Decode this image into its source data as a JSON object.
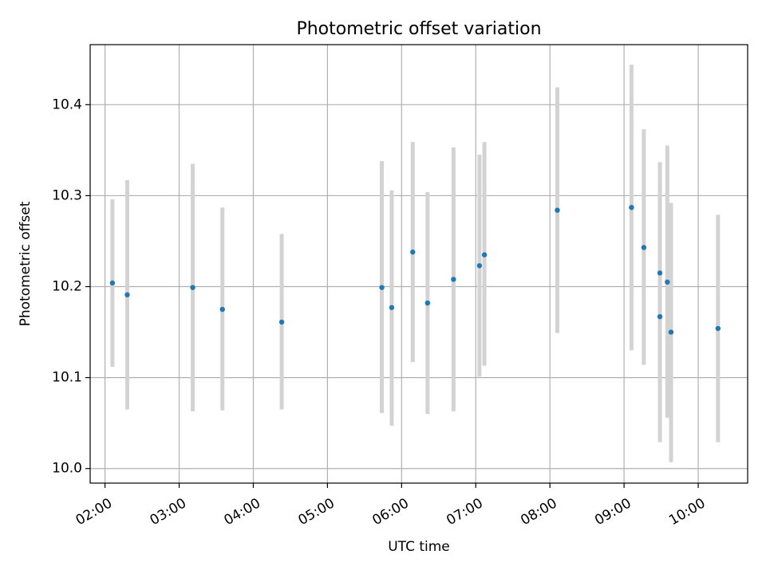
{
  "chart_data": {
    "type": "scatter",
    "title": "Photometric offset variation",
    "xlabel": "UTC time",
    "ylabel": "Photometric offset",
    "xlim": [
      "01:48",
      "10:40"
    ],
    "ylim": [
      9.984,
      10.466
    ],
    "x_ticks": [
      "02:00",
      "03:00",
      "04:00",
      "05:00",
      "06:00",
      "07:00",
      "08:00",
      "09:00",
      "10:00"
    ],
    "y_ticks": [
      10.0,
      10.1,
      10.2,
      10.3,
      10.4
    ],
    "y_tick_labels": [
      "10.0",
      "10.1",
      "10.2",
      "10.3",
      "10.4"
    ],
    "grid": true,
    "colors": {
      "point": "#1f77b4",
      "errorbar": "#d3d3d3"
    },
    "series": [
      {
        "points": [
          {
            "x": "02:06",
            "y": 10.204,
            "ylow": 10.112,
            "yhigh": 10.296
          },
          {
            "x": "02:18",
            "y": 10.191,
            "ylow": 10.065,
            "yhigh": 10.317
          },
          {
            "x": "03:11",
            "y": 10.199,
            "ylow": 10.063,
            "yhigh": 10.335
          },
          {
            "x": "03:35",
            "y": 10.175,
            "ylow": 10.064,
            "yhigh": 10.287
          },
          {
            "x": "04:23",
            "y": 10.161,
            "ylow": 10.065,
            "yhigh": 10.258
          },
          {
            "x": "05:44",
            "y": 10.199,
            "ylow": 10.061,
            "yhigh": 10.338
          },
          {
            "x": "05:52",
            "y": 10.177,
            "ylow": 10.047,
            "yhigh": 10.306
          },
          {
            "x": "06:09",
            "y": 10.238,
            "ylow": 10.117,
            "yhigh": 10.359
          },
          {
            "x": "06:21",
            "y": 10.182,
            "ylow": 10.06,
            "yhigh": 10.304
          },
          {
            "x": "06:42",
            "y": 10.208,
            "ylow": 10.063,
            "yhigh": 10.353
          },
          {
            "x": "07:03",
            "y": 10.223,
            "ylow": 10.101,
            "yhigh": 10.345
          },
          {
            "x": "07:07",
            "y": 10.235,
            "ylow": 10.113,
            "yhigh": 10.359
          },
          {
            "x": "08:06",
            "y": 10.284,
            "ylow": 10.149,
            "yhigh": 10.419
          },
          {
            "x": "09:06",
            "y": 10.287,
            "ylow": 10.13,
            "yhigh": 10.444
          },
          {
            "x": "09:16",
            "y": 10.243,
            "ylow": 10.114,
            "yhigh": 10.373
          },
          {
            "x": "09:29",
            "y": 10.215,
            "ylow": 10.093,
            "yhigh": 10.337
          },
          {
            "x": "09:29",
            "y": 10.167,
            "ylow": 10.029,
            "yhigh": 10.305
          },
          {
            "x": "09:35",
            "y": 10.205,
            "ylow": 10.056,
            "yhigh": 10.355
          },
          {
            "x": "09:38",
            "y": 10.15,
            "ylow": 10.007,
            "yhigh": 10.292
          },
          {
            "x": "10:16",
            "y": 10.154,
            "ylow": 10.029,
            "yhigh": 10.279
          }
        ]
      }
    ]
  }
}
